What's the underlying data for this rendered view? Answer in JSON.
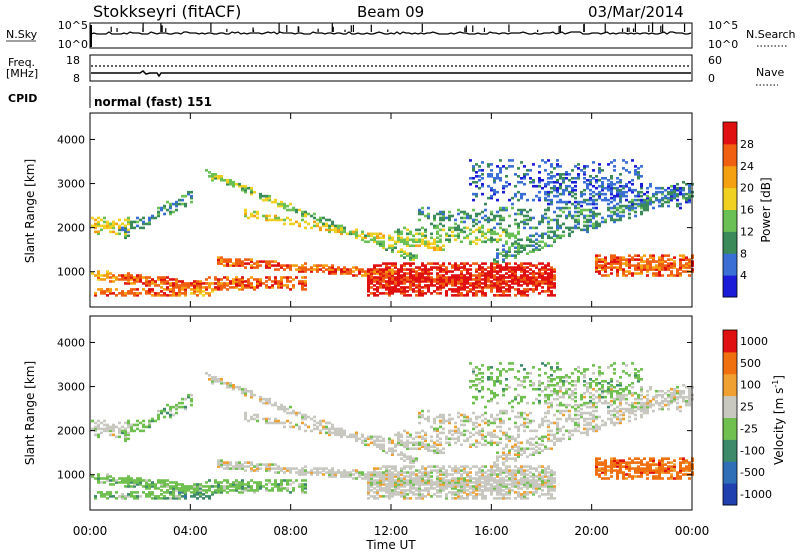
{
  "header": {
    "station": "Stokkseyri (fitACF)",
    "beam": "Beam 09",
    "date": "03/Mar/2014"
  },
  "nsky_panel": {
    "label": "N.Sky",
    "left_ticks": [
      "10^5",
      "10^0"
    ],
    "right_ticks": [
      "10^5",
      "10^0"
    ],
    "right_label": "N.Search"
  },
  "freq_panel": {
    "label_top": "Freq.",
    "label_bottom": "[MHz]",
    "left_ticks": [
      "18",
      "8"
    ],
    "right_ticks": [
      "60",
      "0"
    ],
    "right_label": "Nave"
  },
  "cpid_panel": {
    "label": "CPID",
    "value": "normal (fast) 151"
  },
  "chart_data": [
    {
      "type": "heatmap",
      "name": "power",
      "ylabel": "Slant Range [km]",
      "yticks": [
        "1000",
        "2000",
        "3000",
        "4000"
      ],
      "ylim": [
        200,
        4600
      ],
      "colorbar_label": "Power [dB]",
      "colorbar_ticks": [
        "4",
        "8",
        "12",
        "16",
        "20",
        "24",
        "28"
      ],
      "colorbar_colors": [
        "#1b1bd8",
        "#3a6fd6",
        "#3b8a5a",
        "#6ac055",
        "#f0d020",
        "#f5a010",
        "#f06010",
        "#e01010"
      ]
    },
    {
      "type": "heatmap",
      "name": "velocity",
      "ylabel": "Slant Range [km]",
      "yticks": [
        "1000",
        "2000",
        "3000",
        "4000"
      ],
      "ylim": [
        200,
        4600
      ],
      "colorbar_label": "Velocity [m s^-1]",
      "colorbar_ticks": [
        "1000",
        "500",
        "100",
        "25",
        "-25",
        "-100",
        "-500",
        "-1000"
      ],
      "colorbar_colors": [
        "#2040b0",
        "#2e6fb8",
        "#3d8a6a",
        "#70c050",
        "#c8c8c0",
        "#f0a030",
        "#f07010",
        "#e01010"
      ],
      "xlabel": "Time UT",
      "xticks": [
        "00:00",
        "04:00",
        "08:00",
        "12:00",
        "16:00",
        "20:00",
        "00:00"
      ]
    }
  ]
}
